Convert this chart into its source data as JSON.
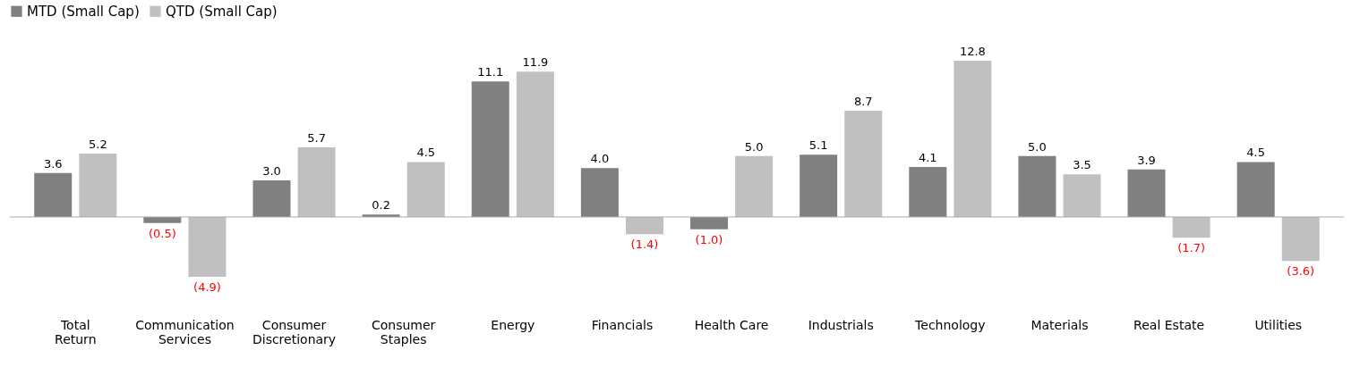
{
  "chart_data": {
    "type": "bar",
    "categories": [
      "Total Return",
      "Communication Services",
      "Consumer Discretionary",
      "Consumer Staples",
      "Energy",
      "Financials",
      "Health Care",
      "Industrials",
      "Technology",
      "Materials",
      "Real Estate",
      "Utilities"
    ],
    "series": [
      {
        "name": "MTD (Small Cap)",
        "color": "#808080",
        "values": [
          3.6,
          -0.5,
          3.0,
          0.2,
          11.1,
          4.0,
          -1.0,
          5.1,
          4.1,
          5.0,
          3.9,
          4.5
        ],
        "value_labels": [
          "3.6",
          "(0.5)",
          "3.0",
          "0.2",
          "11.1",
          "4.0",
          "(1.0)",
          "5.1",
          "4.1",
          "5.0",
          "3.9",
          "4.5"
        ]
      },
      {
        "name": "QTD (Small Cap)",
        "color": "#c0c0c0",
        "values": [
          5.2,
          -4.9,
          5.7,
          4.5,
          11.9,
          -1.4,
          5.0,
          8.7,
          12.8,
          3.5,
          -1.7,
          -3.6
        ],
        "value_labels": [
          "5.2",
          "(4.9)",
          "5.7",
          "4.5",
          "11.9",
          "(1.4)",
          "5.0",
          "8.7",
          "12.8",
          "3.5",
          "(1.7)",
          "(3.6)"
        ]
      }
    ],
    "legend": "top",
    "grid": false
  }
}
